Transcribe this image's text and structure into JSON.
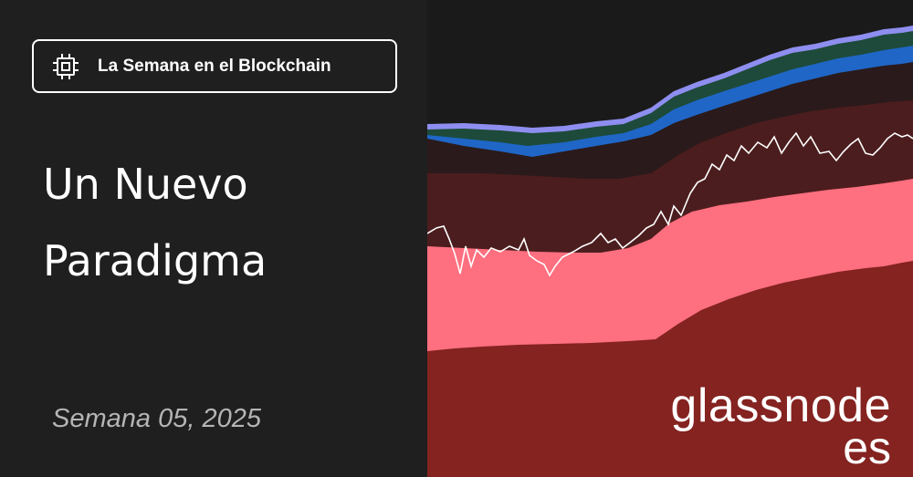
{
  "badge": {
    "label": "La Semana en el Blockchain",
    "icon": "chip-icon"
  },
  "title": {
    "line1": "Un Nuevo",
    "line2": "Paradigma"
  },
  "week_label": "Semana 05, 2025",
  "brand": {
    "name": "glassnode",
    "sub": "es"
  },
  "colors": {
    "background": "#1f1f1f",
    "art_background": "#1a1a1a",
    "band_dark_red": "#842320",
    "band_pink": "#fe6f7f",
    "band_maroon": "#4c1d1e",
    "band_dark": "#2a1a1b",
    "band_green": "#1d4a3a",
    "band_blue": "#1f66c7",
    "band_lavender": "#8e8ef0",
    "price_line": "#ffffff"
  }
}
